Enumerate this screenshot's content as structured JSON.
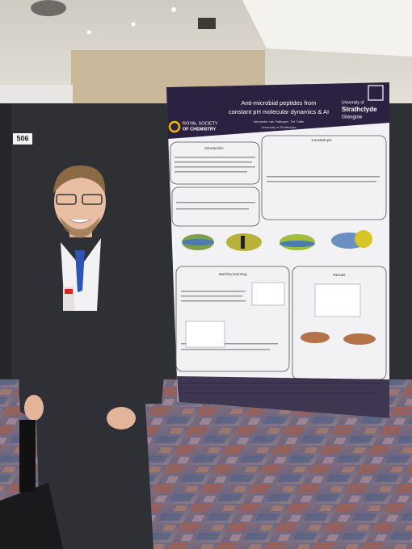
{
  "booth_number": "506",
  "poster": {
    "title_lines": [
      "Anti-microbial peptides from",
      "constant pH molecular dynamics & AI"
    ],
    "authors": "Alexander van Teijlingen, Tell Tuttle",
    "affiliation": "University of Strathclyde",
    "logo_left": [
      "ROYAL SOCIETY",
      "OF CHEMISTRY"
    ],
    "logo_right": [
      "University of",
      "Strathclyde",
      "Glasgow"
    ],
    "sections": [
      "Introduction",
      "Constant pH",
      "Machine learning",
      "Results"
    ]
  }
}
